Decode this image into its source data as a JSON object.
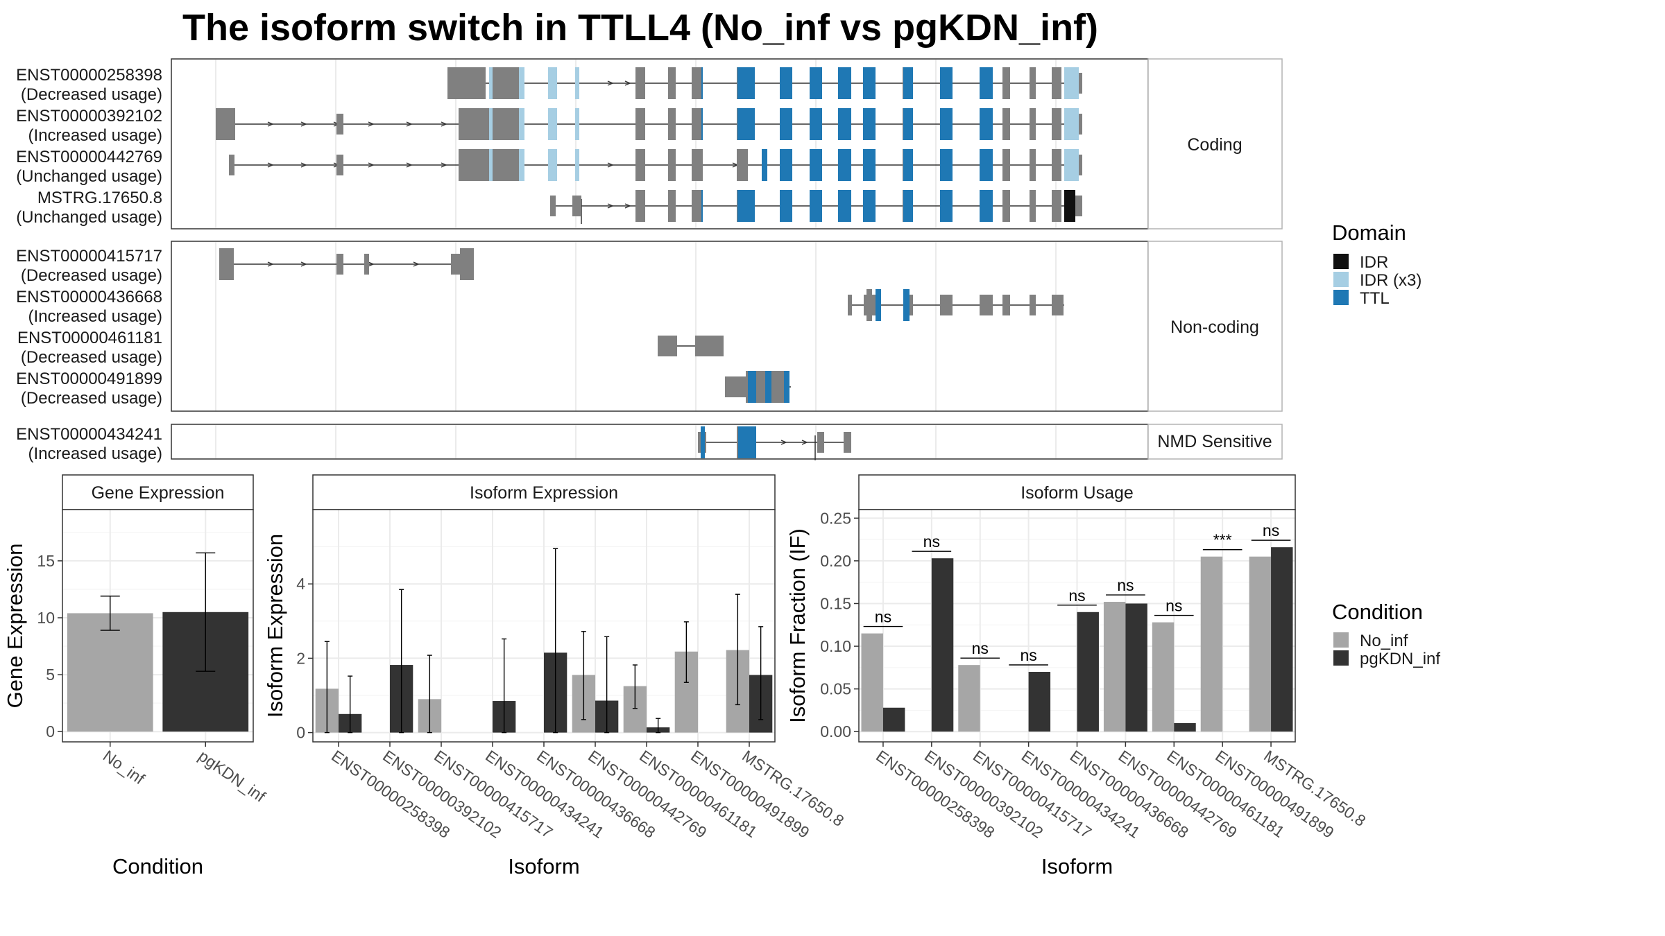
{
  "title": "The isoform switch in TTLL4 (No_inf vs pgKDN_inf)",
  "colors": {
    "exon": "#808080",
    "idr": "#111111",
    "idr_x3": "#a6cee3",
    "ttl": "#1f78b4",
    "no_inf": "#a6a6a6",
    "pgkdn_inf": "#333333"
  },
  "transcript_panels": [
    {
      "label": "Coding",
      "transcripts": [
        {
          "id": "ENST00000258398",
          "usage": "(Decreased usage)"
        },
        {
          "id": "ENST00000392102",
          "usage": "(Increased usage)"
        },
        {
          "id": "ENST00000442769",
          "usage": "(Unchanged usage)"
        },
        {
          "id": "MSTRG.17650.8",
          "usage": "(Unchanged usage)"
        }
      ]
    },
    {
      "label": "Non-coding",
      "transcripts": [
        {
          "id": "ENST00000415717",
          "usage": "(Decreased usage)"
        },
        {
          "id": "ENST00000436668",
          "usage": "(Increased usage)"
        },
        {
          "id": "ENST00000461181",
          "usage": "(Decreased usage)"
        },
        {
          "id": "ENST00000491899",
          "usage": "(Decreased usage)"
        }
      ]
    },
    {
      "label": "NMD Sensitive",
      "transcripts": [
        {
          "id": "ENST00000434241",
          "usage": "(Increased usage)"
        }
      ]
    }
  ],
  "domain_legend": {
    "title": "Domain",
    "items": [
      {
        "label": "IDR",
        "color": "#111111"
      },
      {
        "label": "IDR (x3)",
        "color": "#a6cee3"
      },
      {
        "label": "TTL",
        "color": "#1f78b4"
      }
    ]
  },
  "condition_legend": {
    "title": "Condition",
    "items": [
      {
        "label": "No_inf",
        "color": "#a6a6a6"
      },
      {
        "label": "pgKDN_inf",
        "color": "#333333"
      }
    ]
  },
  "chart_data": [
    {
      "type": "bar",
      "title": "Gene Expression",
      "xlabel": "Condition",
      "ylabel": "Gene Expression",
      "categories": [
        "No_inf",
        "pgKDN_inf"
      ],
      "values": [
        10.4,
        10.5
      ],
      "error_low": [
        8.9,
        5.3
      ],
      "error_high": [
        11.9,
        15.7
      ],
      "ylim": [
        -0.9,
        19.5
      ],
      "yticks": [
        0,
        5,
        10,
        15
      ]
    },
    {
      "type": "bar",
      "title": "Isoform Expression",
      "xlabel": "Isoform",
      "ylabel": "Isoform Expression",
      "categories": [
        "ENST00000258398",
        "ENST00000392102",
        "ENST00000415717",
        "ENST00000434241",
        "ENST00000436668",
        "ENST00000442769",
        "ENST00000461181",
        "ENST00000491899",
        "MSTRG.17650.8"
      ],
      "series": [
        {
          "name": "No_inf",
          "values": [
            1.18,
            0,
            0.9,
            0,
            0,
            1.55,
            1.25,
            2.18,
            2.22
          ],
          "error_low": [
            0,
            0,
            0,
            0,
            0,
            0.35,
            0.65,
            1.35,
            0.75
          ],
          "error_high": [
            2.45,
            0,
            2.08,
            0,
            0,
            2.72,
            1.82,
            2.98,
            3.72
          ]
        },
        {
          "name": "pgKDN_inf",
          "values": [
            0.5,
            1.82,
            0,
            0.85,
            2.15,
            0.86,
            0.14,
            0,
            1.55
          ],
          "error_low": [
            0,
            0,
            0,
            0,
            0,
            0,
            0,
            0,
            0.35
          ],
          "error_high": [
            1.52,
            3.85,
            0,
            2.52,
            4.95,
            2.58,
            0.38,
            0,
            2.85
          ]
        }
      ],
      "ylim": [
        -0.25,
        6.0
      ],
      "yticks": [
        0,
        2,
        4
      ]
    },
    {
      "type": "bar",
      "title": "Isoform Usage",
      "xlabel": "Isoform",
      "ylabel": "Isoform Fraction (IF)",
      "categories": [
        "ENST00000258398",
        "ENST00000392102",
        "ENST00000415717",
        "ENST00000434241",
        "ENST00000436668",
        "ENST00000442769",
        "ENST00000461181",
        "ENST00000491899",
        "MSTRG.17650.8"
      ],
      "series": [
        {
          "name": "No_inf",
          "values": [
            0.115,
            0,
            0.078,
            0,
            0,
            0.152,
            0.128,
            0.205,
            0.205
          ]
        },
        {
          "name": "pgKDN_inf",
          "values": [
            0.028,
            0.203,
            0,
            0.07,
            0.14,
            0.15,
            0.01,
            0,
            0.216
          ]
        }
      ],
      "significance": [
        "ns",
        "ns",
        "ns",
        "ns",
        "ns",
        "ns",
        "ns",
        "***",
        "ns"
      ],
      "ylim": [
        -0.012,
        0.26
      ],
      "yticks": [
        0.0,
        0.05,
        0.1,
        0.15,
        0.2,
        0.25
      ],
      "ytick_labels": [
        "0.00",
        "0.05",
        "0.10",
        "0.15",
        "0.20",
        "0.25"
      ]
    }
  ]
}
